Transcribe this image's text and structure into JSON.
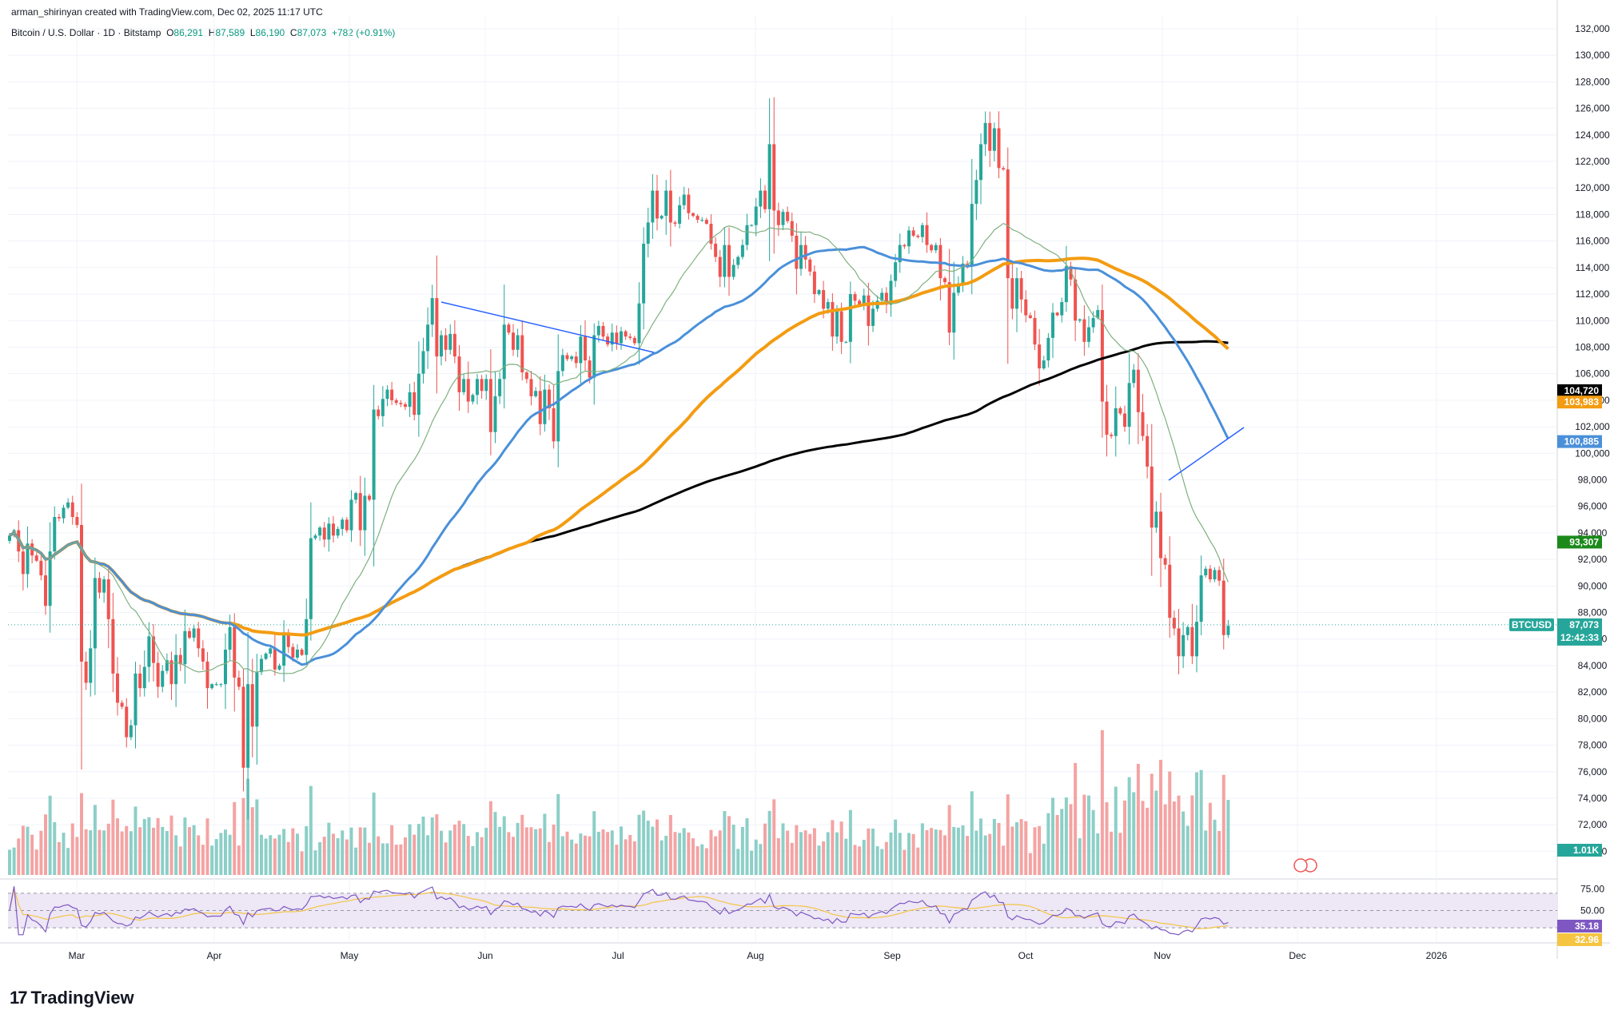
{
  "header": {
    "credit": "arman_shirinyan created with TradingView.com, Dec 02, 2025 11:17 UTC",
    "symbol_desc": "Bitcoin / U.S. Dollar · 1D · Bitstamp",
    "open_label": "O",
    "open": "86,291",
    "high_label": "H",
    "high": "87,589",
    "low_label": "L",
    "low": "86,190",
    "close_label": "C",
    "close": "87,073",
    "change": "+782 (+0.91%)"
  },
  "brand": {
    "name": "TradingView",
    "logo": "17"
  },
  "colors": {
    "up": "#26a69a",
    "down": "#ef5350",
    "vol_up": "#8ccfc7",
    "vol_down": "#f4a3a3",
    "ma_fast": "#7fb07f",
    "ma_blue": "#4a90d9",
    "ma_orange": "#f39c12",
    "ma_black": "#000000",
    "rsi_line": "#7e57c2",
    "rsi_ma": "#f5c542",
    "rsi_band": "#ede7f6"
  },
  "chart_data": {
    "type": "candlestick",
    "symbol": "BTCUSD",
    "ylim": [
      69000,
      132000
    ],
    "y_ticks": [
      "70,000",
      "72,000",
      "74,000",
      "76,000",
      "78,000",
      "80,000",
      "82,000",
      "84,000",
      "86,000",
      "88,000",
      "90,000",
      "92,000",
      "94,000",
      "96,000",
      "98,000",
      "100,000",
      "102,000",
      "104,000",
      "106,000",
      "108,000",
      "110,000",
      "112,000",
      "114,000",
      "116,000",
      "118,000",
      "120,000",
      "122,000",
      "124,000",
      "126,000",
      "128,000",
      "130,000",
      "132,000"
    ],
    "x_labels": [
      "Mar",
      "Apr",
      "May",
      "Jun",
      "Jul",
      "Aug",
      "Sep",
      "Oct",
      "Nov",
      "Dec",
      "2026"
    ],
    "closes": [
      93800,
      94200,
      92600,
      90900,
      93200,
      92300,
      91900,
      90800,
      88500,
      92600,
      95200,
      95100,
      95900,
      96300,
      95200,
      94600,
      84300,
      82700,
      85300,
      90600,
      89500,
      90500,
      87500,
      83400,
      81200,
      80900,
      78600,
      79500,
      83400,
      82300,
      83900,
      86200,
      84200,
      82400,
      83600,
      84400,
      82600,
      84800,
      84100,
      86600,
      86100,
      86800,
      85300,
      84300,
      82300,
      82600,
      82600,
      82600,
      85200,
      86900,
      83100,
      82400,
      76300,
      82600,
      79400,
      83500,
      84500,
      84900,
      85300,
      83700,
      84000,
      86500,
      85400,
      84600,
      85200,
      84800,
      87500,
      93600,
      93800,
      94400,
      93500,
      94700,
      93800,
      94300,
      95000,
      94200,
      96500,
      97000,
      94200,
      96800,
      96500,
      103300,
      102800,
      104100,
      104800,
      104000,
      103800,
      103700,
      103500,
      104600,
      102900,
      106000,
      107700,
      109700,
      111700,
      107300,
      108900,
      107800,
      109000,
      107300,
      104600,
      105600,
      103900,
      104400,
      105600,
      104700,
      105600,
      101600,
      104300,
      105600,
      109700,
      109100,
      107800,
      108900,
      106100,
      105600,
      104300,
      104700,
      102200,
      104800,
      103400,
      100900,
      106200,
      107400,
      107100,
      107300,
      106800,
      108800,
      107000,
      105700,
      108900,
      109600,
      108800,
      108200,
      109100,
      108300,
      109200,
      108800,
      108700,
      108300,
      111300,
      115800,
      117400,
      119800,
      117700,
      117900,
      119800,
      117400,
      117300,
      118700,
      119500,
      118100,
      117900,
      117600,
      117600,
      117300,
      115800,
      114800,
      113300,
      115700,
      113300,
      114200,
      114800,
      115700,
      117200,
      117200,
      118600,
      119800,
      118400,
      123300,
      118300,
      117200,
      118200,
      117500,
      116400,
      113900,
      115700,
      114600,
      113700,
      112000,
      112300,
      110900,
      111400,
      108800,
      110700,
      108400,
      108400,
      112000,
      111500,
      111200,
      111900,
      109600,
      110900,
      111500,
      112100,
      111200,
      113000,
      114400,
      115700,
      115600,
      116800,
      116400,
      116300,
      117200,
      115700,
      115300,
      115700,
      113200,
      112900,
      109100,
      112100,
      112800,
      114300,
      114100,
      118800,
      120600,
      123300,
      124900,
      122800,
      124500,
      121500,
      121400,
      113200,
      110900,
      113200,
      111600,
      110400,
      110200,
      108200,
      106400,
      107000,
      108700,
      110600,
      110400,
      111400,
      114100,
      113100,
      110000,
      110100,
      108400,
      109500,
      110200,
      110800,
      103900,
      101400,
      101300,
      103400,
      103000,
      102000,
      105300,
      106300,
      103100,
      101300,
      99000,
      94400,
      95600,
      92100,
      91600,
      87600,
      86800,
      84700,
      86300,
      86900,
      84700,
      87300,
      90800,
      91300,
      90500,
      91200,
      90400,
      86300,
      87000
    ],
    "current_price": "87,073",
    "countdown": "12:42:33",
    "series": [
      {
        "name": "MA fast",
        "last_value": "93,307"
      },
      {
        "name": "MA 50",
        "last_value": "100,885"
      },
      {
        "name": "MA 100",
        "last_value": "103,983"
      },
      {
        "name": "MA 200",
        "last_value": "104,720"
      }
    ],
    "volume_last": "1.01K",
    "rsi": {
      "ticks": [
        "75.00",
        "50.00"
      ],
      "value": "35.18",
      "ma_value": "32.96",
      "band": [
        30,
        70
      ]
    }
  }
}
